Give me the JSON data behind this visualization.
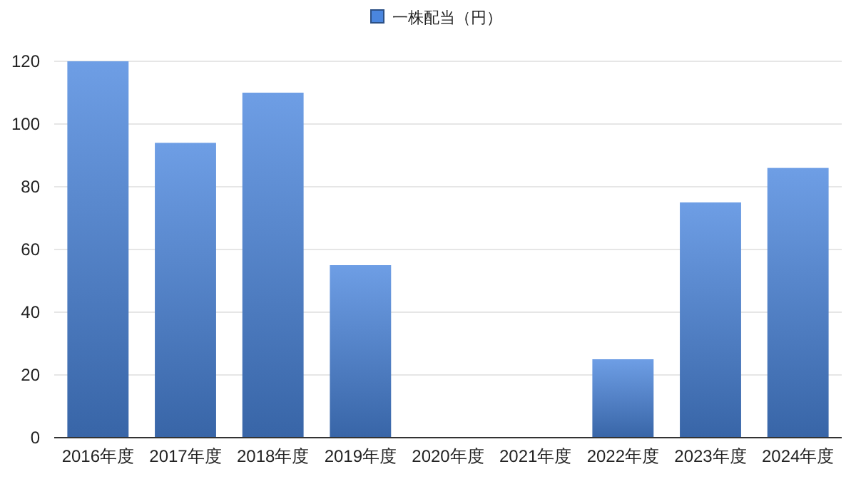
{
  "chart_data": {
    "type": "bar",
    "categories": [
      "2016年度",
      "2017年度",
      "2018年度",
      "2019年度",
      "2020年度",
      "2021年度",
      "2022年度",
      "2023年度",
      "2024年度"
    ],
    "series": [
      {
        "name": "一株配当（円）",
        "color": "#4a86de",
        "values": [
          120,
          94,
          110,
          55,
          0,
          0,
          25,
          75,
          86
        ]
      }
    ],
    "ylim": [
      0,
      120
    ],
    "yticks": [
      0,
      20,
      40,
      60,
      80,
      100,
      120
    ],
    "grid": "y",
    "legend": "top"
  }
}
